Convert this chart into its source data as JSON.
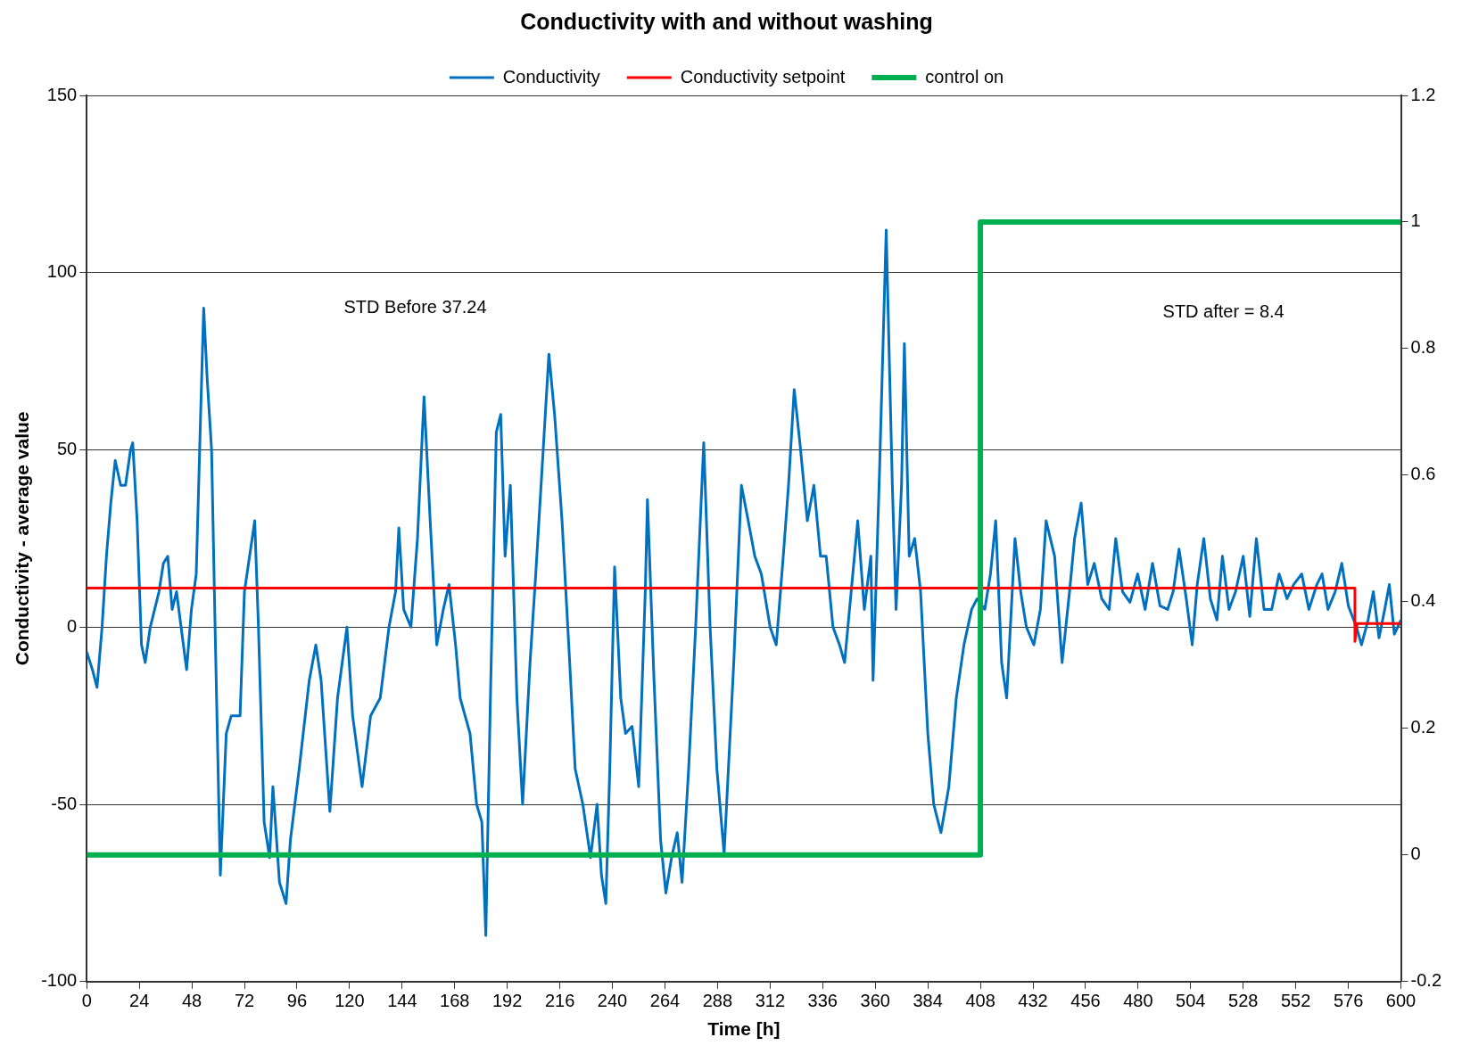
{
  "chart_data": {
    "type": "line",
    "title": "Conductivity with and without washing",
    "xlabel": "Time [h]",
    "ylabel": "Conductivity - average value",
    "xlim": [
      0,
      600
    ],
    "xticks": [
      0,
      24,
      48,
      72,
      96,
      120,
      144,
      168,
      192,
      216,
      240,
      264,
      288,
      312,
      336,
      360,
      384,
      408,
      432,
      456,
      480,
      504,
      528,
      552,
      576,
      600
    ],
    "ylim": [
      -100,
      150
    ],
    "yticks": [
      -100,
      -50,
      0,
      50,
      100,
      150
    ],
    "y2lim": [
      -0.2,
      1.2
    ],
    "y2ticks": [
      -0.2,
      0,
      0.2,
      0.4,
      0.6,
      0.8,
      1,
      1.2
    ],
    "grid": "y",
    "legend": "top",
    "marker": "none",
    "line_style": "solid",
    "annotations": [
      "STD Before 37.24",
      "STD after = 8.4"
    ],
    "series": [
      {
        "name": "Conductivity",
        "color": "#0070c0",
        "x": [
          0,
          2.6,
          4.7,
          7,
          9,
          11,
          13,
          15.5,
          17.7,
          20,
          21,
          23,
          25,
          26.7,
          29,
          33,
          35,
          37,
          39,
          41,
          43.5,
          45.6,
          47.8,
          50,
          52,
          53.4,
          55,
          57,
          58.6,
          61,
          63.7,
          66,
          70,
          72,
          76.7,
          78.4,
          81,
          83.5,
          85,
          88,
          91,
          93,
          97,
          101.6,
          104.6,
          107,
          111,
          114.5,
          118.8,
          121.4,
          125.7,
          129.6,
          134,
          138,
          141,
          142.5,
          144.7,
          148,
          151,
          154,
          156.8,
          159.8,
          162.8,
          165.4,
          168.4,
          170.5,
          175,
          178,
          180.4,
          182.2,
          184.3,
          187,
          189,
          191,
          193.4,
          196.4,
          199,
          202.4,
          205,
          208.4,
          211,
          213.6,
          217,
          220.5,
          223,
          226.5,
          230,
          233,
          235,
          237,
          238.8,
          241,
          243.8,
          246,
          249,
          252,
          255,
          256,
          259,
          262,
          264.4,
          267,
          269.6,
          271.8,
          274.8,
          278,
          281.7,
          284.6,
          287.7,
          291,
          295.4,
          298.9,
          302,
          305,
          308,
          312,
          314.8,
          318,
          320.4,
          323,
          325.6,
          329,
          332,
          335,
          337.6,
          340.7,
          343.7,
          346,
          349,
          352,
          355,
          358,
          359,
          362,
          365,
          367.8,
          369.5,
          372,
          373.3,
          375.5,
          378,
          380.7,
          384,
          386.7,
          390,
          393.6,
          397,
          400.5,
          404,
          406.5,
          410,
          412.6,
          415,
          417.7,
          420,
          423.8,
          426.4,
          429,
          432.4,
          435.4,
          438,
          441.9,
          445.3,
          448.7,
          451,
          454,
          457,
          460,
          463.4,
          466.8,
          469.8,
          472.9,
          476.3,
          479.8,
          483.2,
          486.6,
          490,
          493.5,
          496,
          498.7,
          502,
          504.7,
          507,
          510,
          513,
          516,
          518.5,
          521.5,
          524.5,
          528,
          531,
          534,
          537.5,
          541,
          544.4,
          548,
          551,
          554.7,
          558,
          561.6,
          564,
          566.7,
          570,
          573,
          576,
          579.7,
          582,
          585,
          587.4,
          590,
          592.6,
          594.7,
          597,
          600
        ],
        "values": [
          -7,
          -12,
          -17,
          0,
          20,
          35,
          47,
          40,
          40,
          50,
          52,
          30,
          -5,
          -10,
          0,
          10,
          18,
          20,
          5,
          10,
          -2,
          -12,
          5,
          15,
          60,
          90,
          70,
          50,
          0,
          -70,
          -30,
          -25,
          -25,
          10,
          30,
          0,
          -55,
          -65,
          -45,
          -72,
          -78,
          -60,
          -40,
          -15,
          -5,
          -15,
          -52,
          -20,
          0,
          -25,
          -45,
          -25,
          -20,
          0,
          10,
          28,
          5,
          0,
          25,
          65,
          30,
          -5,
          5,
          12,
          -5,
          -20,
          -30,
          -50,
          -55,
          -87,
          -20,
          55,
          60,
          20,
          40,
          -20,
          -50,
          -10,
          15,
          50,
          77,
          60,
          30,
          -10,
          -40,
          -50,
          -65,
          -50,
          -70,
          -78,
          -40,
          17,
          -20,
          -30,
          -28,
          -45,
          10,
          36,
          -15,
          -60,
          -75,
          -65,
          -58,
          -72,
          -40,
          0,
          52,
          0,
          -40,
          -64,
          -10,
          40,
          30,
          20,
          15,
          0,
          -5,
          20,
          40,
          67,
          52,
          30,
          40,
          20,
          20,
          0,
          -5,
          -10,
          10,
          30,
          5,
          20,
          -15,
          45,
          112,
          40,
          5,
          40,
          80,
          20,
          25,
          10,
          -30,
          -50,
          -58,
          -45,
          -20,
          -5,
          5,
          8,
          5,
          15,
          30,
          -10,
          -20,
          25,
          10,
          0,
          -5,
          5,
          30,
          20,
          -10,
          10,
          25,
          35,
          12,
          18,
          8,
          5,
          25,
          10,
          7,
          15,
          5,
          18,
          6,
          5,
          10,
          22,
          8,
          -5,
          12,
          25,
          8,
          2,
          20,
          5,
          10,
          20,
          3,
          25,
          5,
          5,
          15,
          8,
          12,
          15,
          5,
          12,
          15,
          5,
          10,
          18,
          6,
          0,
          -5,
          2,
          10,
          -3,
          5,
          12,
          -2,
          2
        ]
      },
      {
        "name": "Conductivity setpoint",
        "color": "#ff0000",
        "x": [
          0,
          579,
          579,
          580,
          600
        ],
        "values": [
          11,
          11,
          -4,
          1,
          1
        ]
      },
      {
        "name": "control on",
        "color": "#00b050",
        "axis": "y2",
        "x": [
          0,
          408,
          408,
          600
        ],
        "values": [
          0,
          0,
          1,
          1
        ]
      }
    ]
  }
}
